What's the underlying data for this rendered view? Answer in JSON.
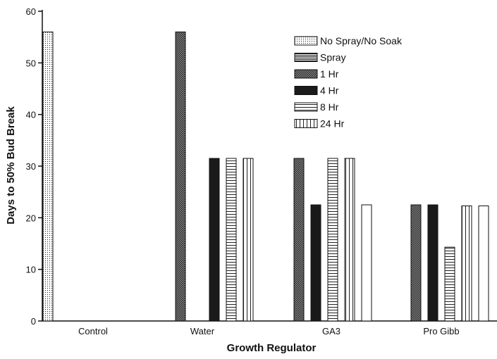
{
  "chart_data": {
    "type": "bar",
    "xlabel": "Growth Regulator",
    "ylabel": "Days to 50% Bud Break",
    "ylim": [
      0,
      60
    ],
    "yticks": [
      "0",
      "10",
      "20",
      "30",
      "40",
      "50",
      "60"
    ],
    "categories": [
      "Control",
      "Water",
      "GA3",
      "Pro Gibb"
    ],
    "series": [
      {
        "name": "No Spray/No Soak",
        "pattern": "dots",
        "values": [
          56,
          null,
          null,
          null
        ]
      },
      {
        "name": "Spray",
        "pattern": "hstripes-thin",
        "values": [
          null,
          null,
          null,
          null
        ]
      },
      {
        "name": "1 Hr",
        "pattern": "crosshatch",
        "values": [
          null,
          56,
          31.5,
          22.5
        ]
      },
      {
        "name": "4 Hr",
        "pattern": "solid",
        "values": [
          null,
          31.5,
          22.5,
          22.5
        ]
      },
      {
        "name": "8 Hr",
        "pattern": "hstripes",
        "values": [
          null,
          31.5,
          31.5,
          14.3
        ]
      },
      {
        "name": "24 Hr",
        "pattern": "vstripes",
        "values": [
          null,
          31.5,
          31.5,
          22.3
        ]
      },
      {
        "name": "",
        "pattern": "blank",
        "values": [
          null,
          null,
          22.5,
          22.3
        ]
      }
    ],
    "legend_position": "top-right",
    "grid": false
  }
}
